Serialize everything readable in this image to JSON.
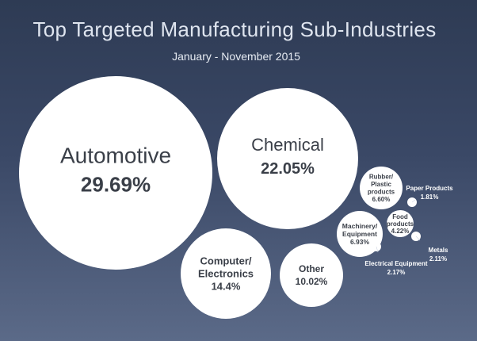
{
  "chart_data": {
    "type": "bubble",
    "title": "Top Targeted Manufacturing Sub-Industries",
    "subtitle": "January - November 2015",
    "unit": "%",
    "items": [
      {
        "name": "Automotive",
        "lines": [
          "Automotive"
        ],
        "value": 29.69,
        "value_label": "29.69%"
      },
      {
        "name": "Chemical",
        "lines": [
          "Chemical"
        ],
        "value": 22.05,
        "value_label": "22.05%"
      },
      {
        "name": "Computer/Electronics",
        "lines": [
          "Computer/",
          "Electronics"
        ],
        "value": 14.4,
        "value_label": "14.4%"
      },
      {
        "name": "Other",
        "lines": [
          "Other"
        ],
        "value": 10.02,
        "value_label": "10.02%"
      },
      {
        "name": "Machinery/Equipment",
        "lines": [
          "Machinery/",
          "Equipment"
        ],
        "value": 6.93,
        "value_label": "6.93%"
      },
      {
        "name": "Rubber/Plastic products",
        "lines": [
          "Rubber/",
          "Plastic",
          "products"
        ],
        "value": 6.6,
        "value_label": "6.60%"
      },
      {
        "name": "Food products",
        "lines": [
          "Food",
          "products"
        ],
        "value": 4.22,
        "value_label": "4.22%"
      },
      {
        "name": "Electrical Equipment",
        "lines": [
          "Electrical Equipment"
        ],
        "value": 2.17,
        "value_label": "2.17%"
      },
      {
        "name": "Metals",
        "lines": [
          "Metals"
        ],
        "value": 2.11,
        "value_label": "2.11%"
      },
      {
        "name": "Paper Products",
        "lines": [
          "Paper Products"
        ],
        "value": 1.81,
        "value_label": "1.81%"
      }
    ]
  },
  "colors": {
    "background_top": "#2e3b54",
    "background_bottom": "#5b6a88",
    "bubble": "#ffffff",
    "bubble_text": "#3a3f48",
    "title_text": "#dfe5ef",
    "external_label_text": "#ffffff"
  }
}
